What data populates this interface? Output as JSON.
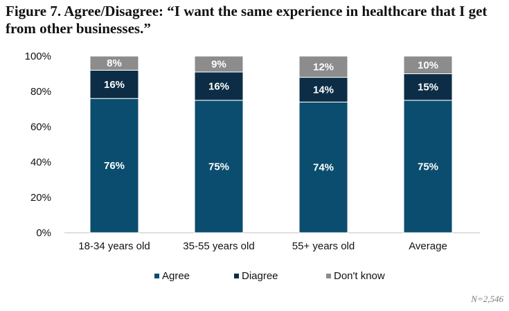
{
  "figure": {
    "title": "Figure 7. Agree/Disagree: “I want the same experience in healthcare that I get from other businesses.”",
    "note": "N=2,546"
  },
  "chart_data": {
    "type": "bar",
    "stacked": true,
    "categories": [
      "18-34 years old",
      "35-55 years old",
      "55+ years old",
      "Average"
    ],
    "series": [
      {
        "name": "Agree",
        "values": [
          76,
          75,
          74,
          75
        ],
        "color": "#0b4d6e",
        "labels": [
          "76%",
          "75%",
          "74%",
          "75%"
        ]
      },
      {
        "name": "Diagree",
        "values": [
          16,
          16,
          14,
          15
        ],
        "color": "#0c2d45",
        "labels": [
          "16%",
          "16%",
          "14%",
          "15%"
        ]
      },
      {
        "name": "Don't know",
        "values": [
          8,
          9,
          12,
          10
        ],
        "color": "#8c8c8c",
        "labels": [
          "8%",
          "9%",
          "12%",
          "10%"
        ]
      }
    ],
    "ylim": [
      0,
      100
    ],
    "yticks": [
      "0%",
      "20%",
      "40%",
      "60%",
      "80%",
      "100%"
    ],
    "legend_position": "bottom-center",
    "grid": false
  }
}
